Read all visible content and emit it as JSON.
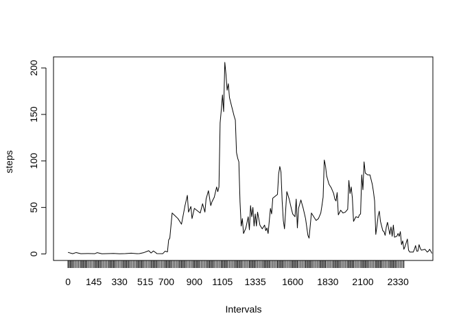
{
  "chart_data": {
    "type": "line",
    "title": "",
    "xlabel": "Intervals",
    "ylabel": "steps",
    "ylim": [
      0,
      206
    ],
    "yticks": [
      0,
      50,
      100,
      150,
      200
    ],
    "xtick_labels": [
      "0",
      "145",
      "330",
      "515",
      "700",
      "900",
      "1105",
      "1335",
      "1600",
      "1830",
      "2100",
      "2330"
    ],
    "grid": false,
    "line_color": "#000000",
    "rug_color": "#000000",
    "x_count": 288,
    "x_labeled_positions": [
      1,
      23,
      45,
      67,
      85,
      109,
      133,
      161,
      193,
      223,
      253,
      283
    ],
    "series": [
      {
        "points": [
          [
            1,
            1.7
          ],
          [
            5,
            0.3
          ],
          [
            8,
            1.5
          ],
          [
            12,
            0.3
          ],
          [
            18,
            0.5
          ],
          [
            24,
            0.3
          ],
          [
            26,
            1.4
          ],
          [
            30,
            0.2
          ],
          [
            40,
            0.6
          ],
          [
            45,
            0.2
          ],
          [
            50,
            0.4
          ],
          [
            55,
            0.8
          ],
          [
            60,
            0.3
          ],
          [
            62,
            0.4
          ],
          [
            66,
            1.5
          ],
          [
            70,
            3.5
          ],
          [
            72,
            1
          ],
          [
            74,
            3.2
          ],
          [
            77,
            0.4
          ],
          [
            82,
            0.3
          ],
          [
            84,
            3
          ],
          [
            86,
            2.2
          ],
          [
            87,
            15
          ],
          [
            88,
            17
          ],
          [
            90,
            44
          ],
          [
            95,
            38
          ],
          [
            98,
            32
          ],
          [
            101,
            52
          ],
          [
            103,
            63
          ],
          [
            104,
            45
          ],
          [
            106,
            51
          ],
          [
            107,
            38
          ],
          [
            109,
            49
          ],
          [
            112,
            46
          ],
          [
            114,
            44
          ],
          [
            116,
            54
          ],
          [
            118,
            45
          ],
          [
            119,
            59
          ],
          [
            121,
            68
          ],
          [
            123,
            52
          ],
          [
            124,
            56
          ],
          [
            126,
            61
          ],
          [
            128,
            72
          ],
          [
            129,
            67
          ],
          [
            130,
            72
          ],
          [
            131,
            141
          ],
          [
            132,
            155
          ],
          [
            133,
            171
          ],
          [
            134,
            153
          ],
          [
            135,
            206
          ],
          [
            136,
            193
          ],
          [
            137,
            176
          ],
          [
            138,
            183
          ],
          [
            139,
            168
          ],
          [
            141,
            158
          ],
          [
            143,
            148
          ],
          [
            144,
            144
          ],
          [
            145,
            109
          ],
          [
            146,
            103
          ],
          [
            147,
            99
          ],
          [
            148,
            56
          ],
          [
            149,
            30
          ],
          [
            150,
            38
          ],
          [
            151,
            22
          ],
          [
            153,
            28
          ],
          [
            155,
            40
          ],
          [
            156,
            26
          ],
          [
            157,
            52
          ],
          [
            158,
            40
          ],
          [
            159,
            50
          ],
          [
            160,
            30
          ],
          [
            161,
            43
          ],
          [
            162,
            30
          ],
          [
            163,
            45
          ],
          [
            165,
            31
          ],
          [
            167,
            27
          ],
          [
            169,
            31
          ],
          [
            170,
            25
          ],
          [
            171,
            28
          ],
          [
            172,
            22
          ],
          [
            174,
            49
          ],
          [
            175,
            43
          ],
          [
            176,
            60
          ],
          [
            178,
            62
          ],
          [
            180,
            64
          ],
          [
            181,
            86
          ],
          [
            182,
            94
          ],
          [
            183,
            88
          ],
          [
            184,
            57
          ],
          [
            185,
            36
          ],
          [
            186,
            27
          ],
          [
            188,
            67
          ],
          [
            190,
            59
          ],
          [
            192,
            48
          ],
          [
            193,
            43
          ],
          [
            195,
            40
          ],
          [
            196,
            59
          ],
          [
            197,
            28
          ],
          [
            198,
            49
          ],
          [
            200,
            58
          ],
          [
            202,
            49
          ],
          [
            204,
            38
          ],
          [
            206,
            20
          ],
          [
            207,
            17
          ],
          [
            209,
            44
          ],
          [
            211,
            40
          ],
          [
            213,
            36
          ],
          [
            215,
            38
          ],
          [
            217,
            44
          ],
          [
            218,
            52
          ],
          [
            219,
            61
          ],
          [
            220,
            101
          ],
          [
            221,
            95
          ],
          [
            222,
            84
          ],
          [
            224,
            75
          ],
          [
            226,
            71
          ],
          [
            228,
            65
          ],
          [
            229,
            59
          ],
          [
            230,
            57
          ],
          [
            231,
            66
          ],
          [
            232,
            42
          ],
          [
            234,
            47
          ],
          [
            236,
            44
          ],
          [
            238,
            45
          ],
          [
            240,
            48
          ],
          [
            241,
            79
          ],
          [
            242,
            65
          ],
          [
            243,
            72
          ],
          [
            244,
            60
          ],
          [
            245,
            35
          ],
          [
            247,
            40
          ],
          [
            249,
            39
          ],
          [
            250,
            42
          ],
          [
            251,
            43
          ],
          [
            252,
            85
          ],
          [
            253,
            69
          ],
          [
            254,
            99
          ],
          [
            255,
            87
          ],
          [
            257,
            85
          ],
          [
            259,
            85
          ],
          [
            261,
            75
          ],
          [
            262,
            67
          ],
          [
            263,
            57
          ],
          [
            264,
            21
          ],
          [
            265,
            30
          ],
          [
            266,
            41
          ],
          [
            267,
            46
          ],
          [
            268,
            35
          ],
          [
            270,
            25
          ],
          [
            271,
            24
          ],
          [
            272,
            20
          ],
          [
            273,
            29
          ],
          [
            274,
            34
          ],
          [
            276,
            21
          ],
          [
            277,
            29
          ],
          [
            278,
            19
          ],
          [
            279,
            31
          ],
          [
            280,
            18
          ],
          [
            282,
            19
          ],
          [
            283,
            22
          ],
          [
            284,
            19
          ],
          [
            285,
            24
          ],
          [
            286,
            10
          ],
          [
            287,
            14
          ],
          [
            288,
            5
          ],
          [
            289,
            8
          ],
          [
            291,
            16
          ],
          [
            292,
            4
          ],
          [
            293,
            2
          ],
          [
            295,
            2
          ],
          [
            296,
            2
          ],
          [
            297,
            5
          ],
          [
            298,
            9
          ],
          [
            299,
            3
          ],
          [
            300,
            3
          ],
          [
            301,
            10
          ],
          [
            302,
            6
          ],
          [
            303,
            4
          ],
          [
            306,
            5
          ],
          [
            308,
            2
          ],
          [
            309,
            3
          ],
          [
            310,
            5
          ],
          [
            311,
            3
          ],
          [
            312,
            0.6
          ]
        ]
      }
    ]
  }
}
